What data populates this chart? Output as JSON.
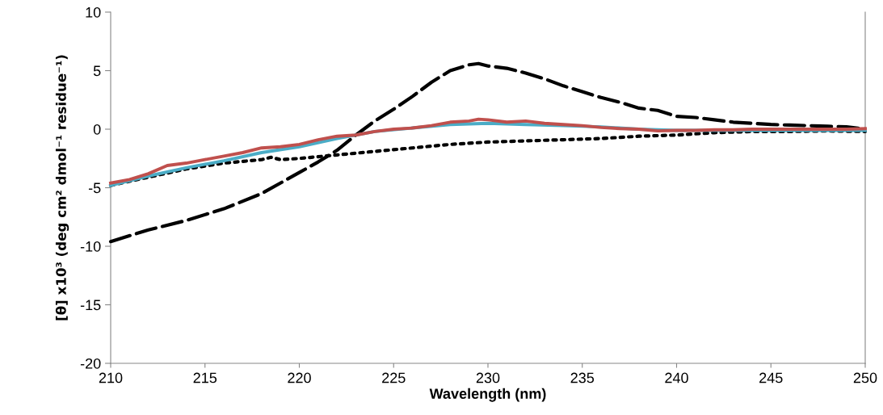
{
  "chart_data": {
    "type": "line",
    "xlabel": "Wavelength (nm)",
    "ylabel": "[θ] x10³ (deg cm² dmol⁻¹ residue⁻¹)",
    "xlim": [
      210,
      250
    ],
    "xticks": [
      210,
      215,
      220,
      225,
      230,
      235,
      240,
      245,
      250
    ],
    "ylim": [
      -20,
      10
    ],
    "yticks": [
      -20,
      -15,
      -10,
      -5,
      0,
      5,
      10
    ],
    "grid": false,
    "legend": false,
    "marker": "none",
    "series": [
      {
        "color": "#000000",
        "line_style": "dashed",
        "x": [
          210,
          212,
          214,
          216,
          218,
          220,
          221,
          222,
          223,
          224,
          225,
          226,
          227,
          228,
          229,
          229.5,
          230,
          231,
          232,
          233,
          234,
          235,
          236,
          237,
          238,
          239,
          240,
          241,
          242,
          243,
          244,
          245,
          246,
          247,
          248,
          249,
          250
        ],
        "values": [
          -9.6,
          -8.6,
          -7.8,
          -6.8,
          -5.5,
          -3.7,
          -2.8,
          -1.8,
          -0.5,
          0.7,
          1.7,
          2.8,
          4.0,
          5.0,
          5.5,
          5.6,
          5.4,
          5.2,
          4.8,
          4.3,
          3.7,
          3.2,
          2.7,
          2.3,
          1.8,
          1.6,
          1.1,
          1.0,
          0.8,
          0.6,
          0.5,
          0.4,
          0.35,
          0.3,
          0.25,
          0.2,
          0.0
        ]
      },
      {
        "color": "#000000",
        "line_style": "dotted",
        "x": [
          210,
          212,
          214,
          216,
          218,
          218.5,
          219,
          220,
          222,
          224,
          226,
          228,
          230,
          232,
          234,
          236,
          238,
          240,
          242,
          244,
          246,
          248,
          250
        ],
        "values": [
          -4.8,
          -4.1,
          -3.4,
          -2.9,
          -2.6,
          -2.4,
          -2.6,
          -2.5,
          -2.2,
          -1.9,
          -1.6,
          -1.3,
          -1.1,
          -1.0,
          -0.9,
          -0.8,
          -0.6,
          -0.5,
          -0.3,
          -0.2,
          -0.2,
          -0.15,
          -0.2
        ]
      },
      {
        "color": "#4bacc6",
        "line_style": "solid",
        "x": [
          210,
          212,
          214,
          216,
          218,
          220,
          222,
          224,
          226,
          228,
          230,
          232,
          234,
          236,
          238,
          240,
          242,
          244,
          246,
          248,
          250
        ],
        "values": [
          -4.8,
          -4.0,
          -3.3,
          -2.7,
          -2.0,
          -1.5,
          -0.8,
          -0.2,
          0.1,
          0.4,
          0.5,
          0.4,
          0.3,
          0.2,
          0.0,
          -0.1,
          -0.1,
          -0.1,
          -0.1,
          -0.1,
          -0.1
        ]
      },
      {
        "color": "#c0504d",
        "line_style": "solid",
        "x": [
          210,
          211,
          212,
          213,
          214,
          215,
          216,
          217,
          218,
          219,
          220,
          221,
          222,
          223,
          224,
          225,
          226,
          227,
          228,
          229,
          229.5,
          230,
          231,
          232,
          233,
          234,
          235,
          236,
          237,
          238,
          239,
          240,
          241,
          242,
          243,
          244,
          245,
          246,
          247,
          248,
          249,
          250
        ],
        "values": [
          -4.6,
          -4.3,
          -3.8,
          -3.1,
          -2.9,
          -2.6,
          -2.3,
          -2.0,
          -1.6,
          -1.5,
          -1.3,
          -0.9,
          -0.6,
          -0.5,
          -0.2,
          0.0,
          0.1,
          0.3,
          0.6,
          0.7,
          0.85,
          0.8,
          0.6,
          0.7,
          0.5,
          0.4,
          0.3,
          0.15,
          0.05,
          0.0,
          -0.15,
          -0.1,
          -0.1,
          -0.05,
          -0.05,
          0.0,
          0.0,
          0.0,
          0.0,
          0.0,
          0.0,
          0.05
        ]
      }
    ]
  }
}
